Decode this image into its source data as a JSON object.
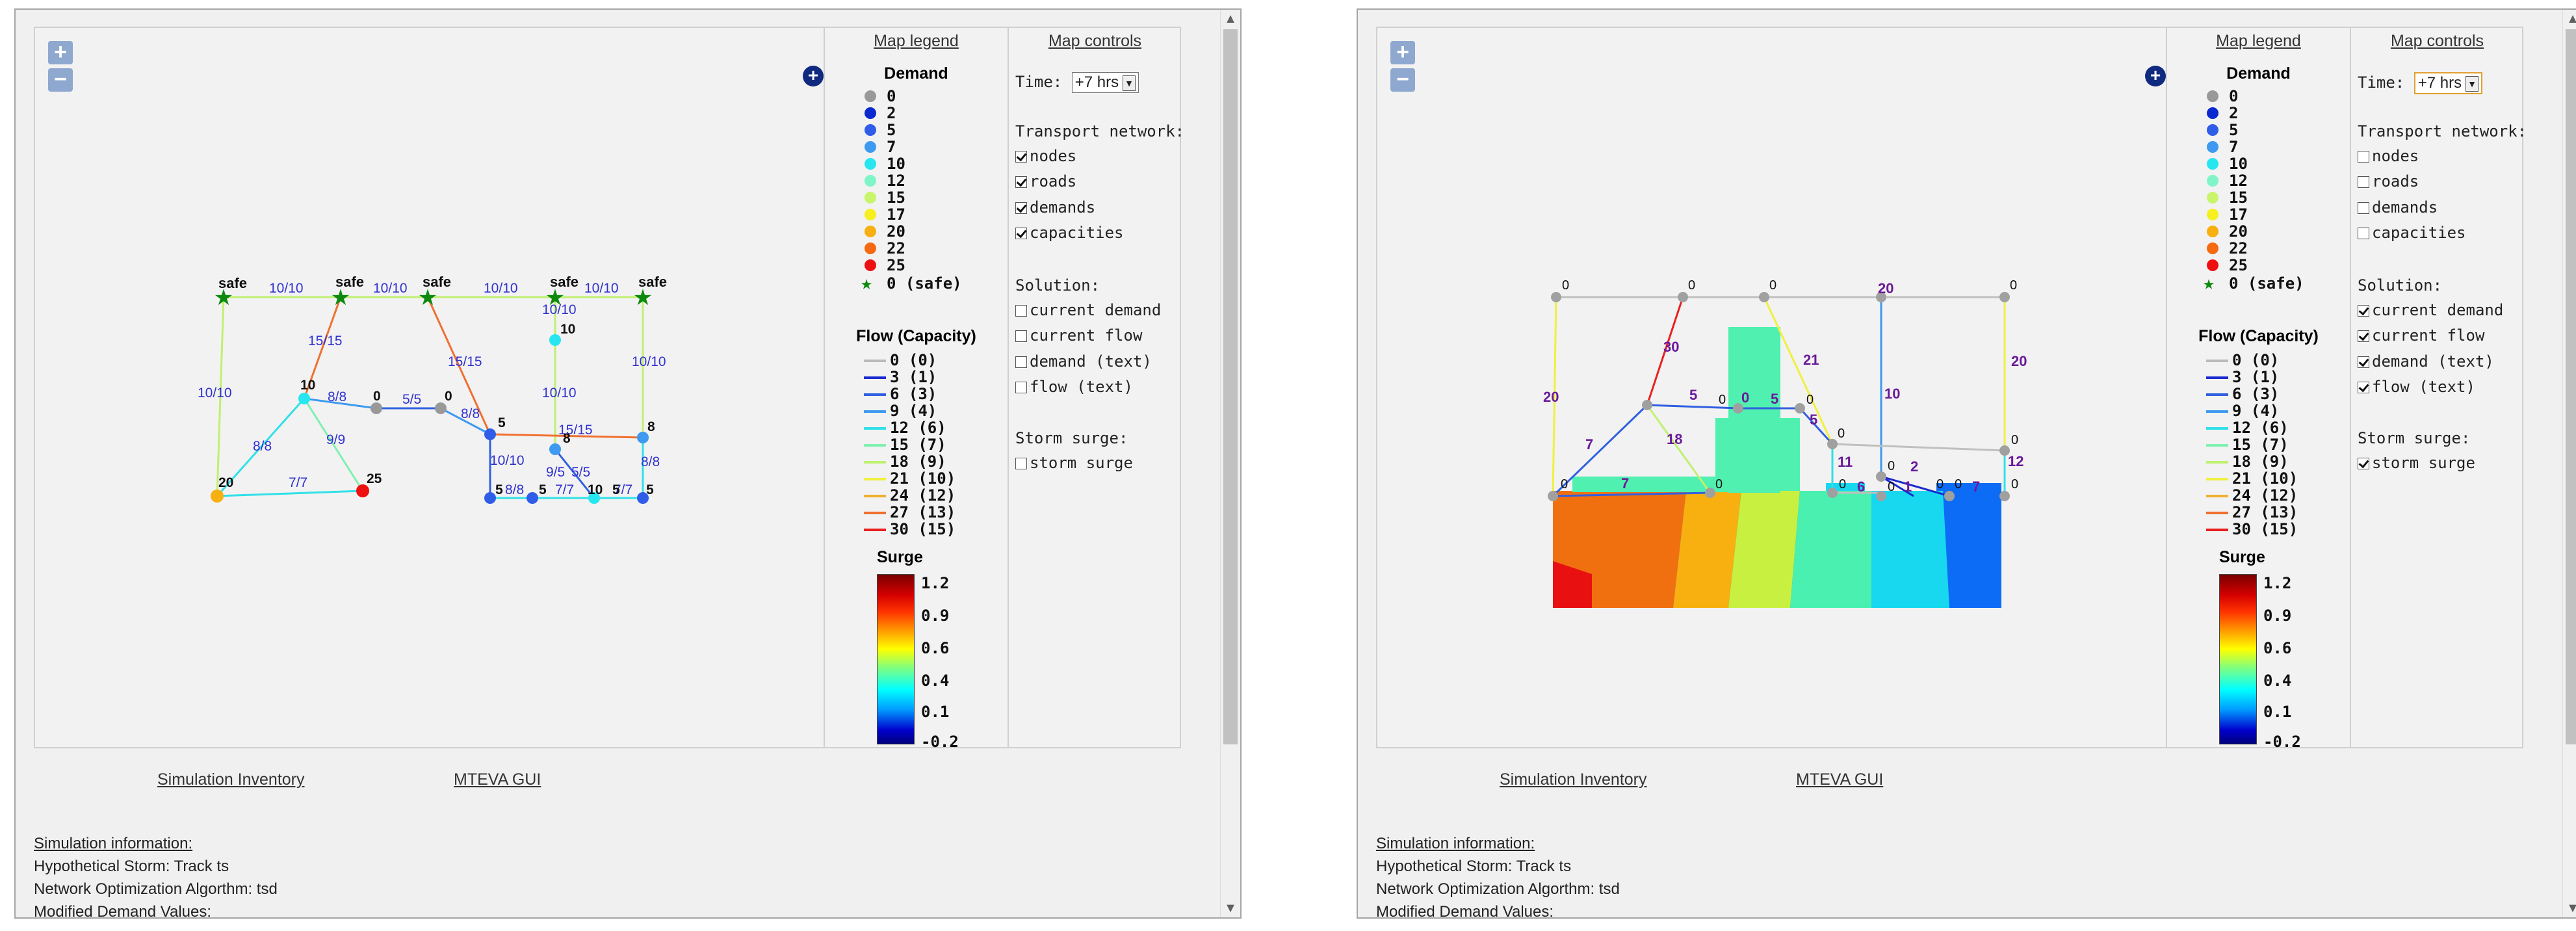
{
  "legend": {
    "title": "Map legend",
    "demand_title": "Demand",
    "demand_items": [
      {
        "label": "0",
        "color": "#999999"
      },
      {
        "label": "2",
        "color": "#0a2ad0"
      },
      {
        "label": "5",
        "color": "#2f5de8"
      },
      {
        "label": "7",
        "color": "#3d9af0"
      },
      {
        "label": "10",
        "color": "#28e6f0"
      },
      {
        "label": "12",
        "color": "#7ff5c8"
      },
      {
        "label": "15",
        "color": "#c8f56a"
      },
      {
        "label": "17",
        "color": "#f7f020"
      },
      {
        "label": "20",
        "color": "#f7b010"
      },
      {
        "label": "22",
        "color": "#f56a10"
      },
      {
        "label": "25",
        "color": "#ee1010"
      }
    ],
    "safe_label": "0 (safe)",
    "flow_title": "Flow (Capacity)",
    "flow_items": [
      {
        "label": "0 (0)",
        "color": "#bbbbbb"
      },
      {
        "label": "3 (1)",
        "color": "#1a2ad0"
      },
      {
        "label": "6 (3)",
        "color": "#3060e0"
      },
      {
        "label": "9 (4)",
        "color": "#3d9af0"
      },
      {
        "label": "12 (6)",
        "color": "#30e0e8"
      },
      {
        "label": "15 (7)",
        "color": "#80f0b0"
      },
      {
        "label": "18 (9)",
        "color": "#c0f070"
      },
      {
        "label": "21 (10)",
        "color": "#f0f040"
      },
      {
        "label": "24 (12)",
        "color": "#f0b030"
      },
      {
        "label": "27 (13)",
        "color": "#f07030"
      },
      {
        "label": "30 (15)",
        "color": "#e82020"
      }
    ],
    "surge_title": "Surge",
    "surge_labels": [
      "1.2",
      "0.9",
      "0.6",
      "0.4",
      "0.1",
      "-0.2"
    ]
  },
  "controls": {
    "title": "Map controls",
    "time_label": "Time:",
    "time_value": "+7 hrs",
    "transport_label": "Transport network:",
    "transport_items": [
      "nodes",
      "roads",
      "demands",
      "capacities"
    ],
    "solution_label": "Solution:",
    "solution_items": [
      "current demand",
      "current flow",
      "demand (text)",
      "flow (text)"
    ],
    "surge_label": "Storm surge:",
    "surge_item": "storm surge"
  },
  "left_state": {
    "transport": [
      true,
      true,
      true,
      true
    ],
    "solution": [
      false,
      false,
      false,
      false
    ],
    "surge": false
  },
  "right_state": {
    "transport": [
      false,
      false,
      false,
      false
    ],
    "solution": [
      true,
      true,
      true,
      true
    ],
    "surge": true
  },
  "zoom": {
    "in": "+",
    "out": "−"
  },
  "layer_icon": "+",
  "links": {
    "inventory": "Simulation Inventory",
    "gui": "MTEVA GUI"
  },
  "info": {
    "header": "Simulation information:",
    "storm": "Hypothetical Storm: Track ts",
    "algorithm": "Network Optimization Algorthm: tsd",
    "modified": "Modified Demand Values:"
  },
  "left_map": {
    "safe_labels": [
      "safe",
      "safe",
      "safe",
      "safe",
      "safe"
    ],
    "capacity_labels": [
      "10/10",
      "10/10",
      "10/10",
      "10/10",
      "15/15",
      "15/15",
      "10/10",
      "10/10",
      "10/10",
      "8/8",
      "5/5",
      "8/8",
      "10/10",
      "15/15",
      "8/8",
      "8/8",
      "9/9",
      "7/7",
      "8/8",
      "9/5",
      "5/5",
      "7/7",
      "7/7"
    ],
    "demand_labels": [
      "10",
      "0",
      "0",
      "5",
      "10",
      "8",
      "8",
      "20",
      "25",
      "10",
      "5",
      "5",
      "5",
      "5"
    ]
  },
  "right_map": {
    "flow_labels": [
      "0",
      "0",
      "0",
      "0",
      "0",
      "0",
      "0",
      "20",
      "30",
      "21",
      "20",
      "20",
      "10",
      "5",
      "0",
      "5",
      "5",
      "12",
      "7",
      "18",
      "7",
      "11",
      "2",
      "6",
      "1",
      "7",
      "0",
      "0",
      "0",
      "0",
      "0",
      "0",
      "0",
      "0",
      "0"
    ]
  }
}
